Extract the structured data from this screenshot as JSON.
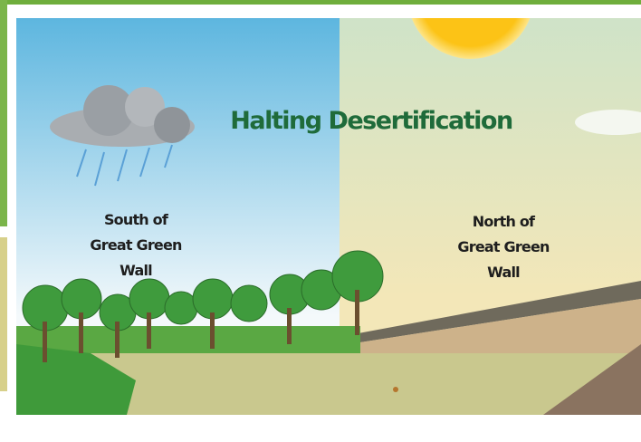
{
  "title": "Halting Desertification",
  "labels": [
    {
      "lines": [
        "South of",
        "Great Green",
        "Wall"
      ]
    },
    {
      "lines": [
        "North of",
        "Great Green",
        "Wall"
      ]
    }
  ]
}
